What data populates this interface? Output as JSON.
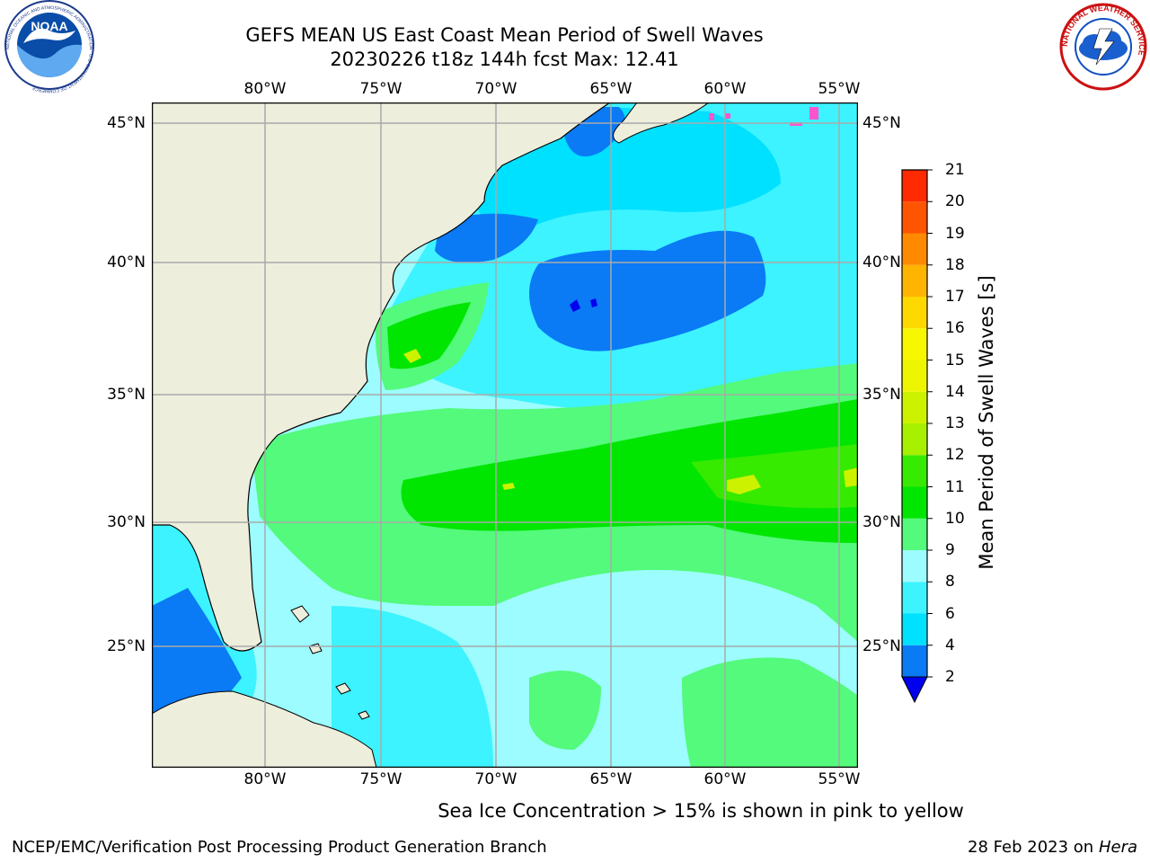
{
  "title_line1": "GEFS MEAN US East Coast Mean Period of Swell Waves",
  "title_line2": "20230226 t18z 144h fcst   Max: 12.41",
  "longitude_labels": [
    "80°W",
    "75°W",
    "70°W",
    "65°W",
    "60°W",
    "55°W"
  ],
  "latitude_labels": [
    "45°N",
    "40°N",
    "35°N",
    "30°N",
    "25°N"
  ],
  "colorbar": {
    "label": "Mean Period of Swell Waves [s]",
    "ticks": [
      "2",
      "4",
      "6",
      "8",
      "9",
      "10",
      "11",
      "12",
      "13",
      "14",
      "15",
      "16",
      "17",
      "18",
      "19",
      "20",
      "21"
    ],
    "colors": [
      "#0a7af5",
      "#00e0ff",
      "#3cf3ff",
      "#9cfcff",
      "#53fa7b",
      "#00e600",
      "#36ea00",
      "#a6f000",
      "#cdf200",
      "#eef500",
      "#f7f700",
      "#ffd800",
      "#ffb400",
      "#ff8a00",
      "#ff5400",
      "#ff2a00",
      "#ff0000"
    ],
    "under_color": "#0000ee"
  },
  "note": "Sea Ice Concentration > 15% is shown in pink to yellow",
  "footer_left": "NCEP/EMC/Verification Post Processing Product Generation Branch",
  "footer_date": "28 Feb 2023 on",
  "footer_host": "Hera",
  "logos": {
    "noaa": {
      "text": "NOAA",
      "ring_text": "NATIONAL OCEANIC AND ATMOSPHERIC ADMINISTRATION · U.S. DEPARTMENT OF COMMERCE"
    },
    "nws": {
      "ring_text": "NATIONAL WEATHER SERVICE"
    }
  },
  "map_colors": {
    "land": "#eeeedd",
    "ocean_low": "#0a7af5",
    "ocean_mid": "#00e0ff",
    "ocean_light": "#9cfcff",
    "ocean_green": "#53fa7b",
    "ocean_bright": "#00e600",
    "ocean_peak": "#cdf200",
    "sea_ice": "#ff55cc"
  }
}
